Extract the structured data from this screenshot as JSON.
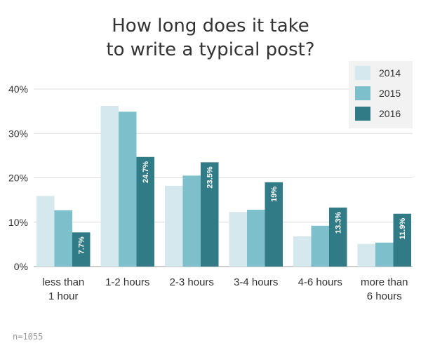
{
  "chart_data": {
    "type": "bar",
    "title_lines": [
      "How long does it take",
      "to write a typical post?"
    ],
    "categories": [
      [
        "less than",
        "1 hour"
      ],
      [
        "1-2 hours"
      ],
      [
        "2-3 hours"
      ],
      [
        "3-4 hours"
      ],
      [
        "4-6 hours"
      ],
      [
        "more than",
        "6 hours"
      ]
    ],
    "series": [
      {
        "name": "2014",
        "color": "#d5e8ed",
        "values": [
          15.9,
          36.2,
          18.2,
          12.3,
          6.8,
          5.1
        ]
      },
      {
        "name": "2015",
        "color": "#7dc0cc",
        "values": [
          12.7,
          34.9,
          20.5,
          12.8,
          9.2,
          5.4
        ]
      },
      {
        "name": "2016",
        "color": "#317b86",
        "values": [
          7.7,
          24.7,
          23.5,
          19,
          13.3,
          11.9
        ]
      }
    ],
    "data_labels": [
      "7.7%",
      "24.7%",
      "23.5%",
      "19%",
      "13.3%",
      "11.9%"
    ],
    "y_ticks": [
      0,
      10,
      20,
      30,
      40
    ],
    "y_tick_labels": [
      "0%",
      "10%",
      "20%",
      "30%",
      "40%"
    ],
    "ylim": [
      0,
      40
    ],
    "grid": true,
    "legend_position": "top-right",
    "note": "n=1055"
  }
}
